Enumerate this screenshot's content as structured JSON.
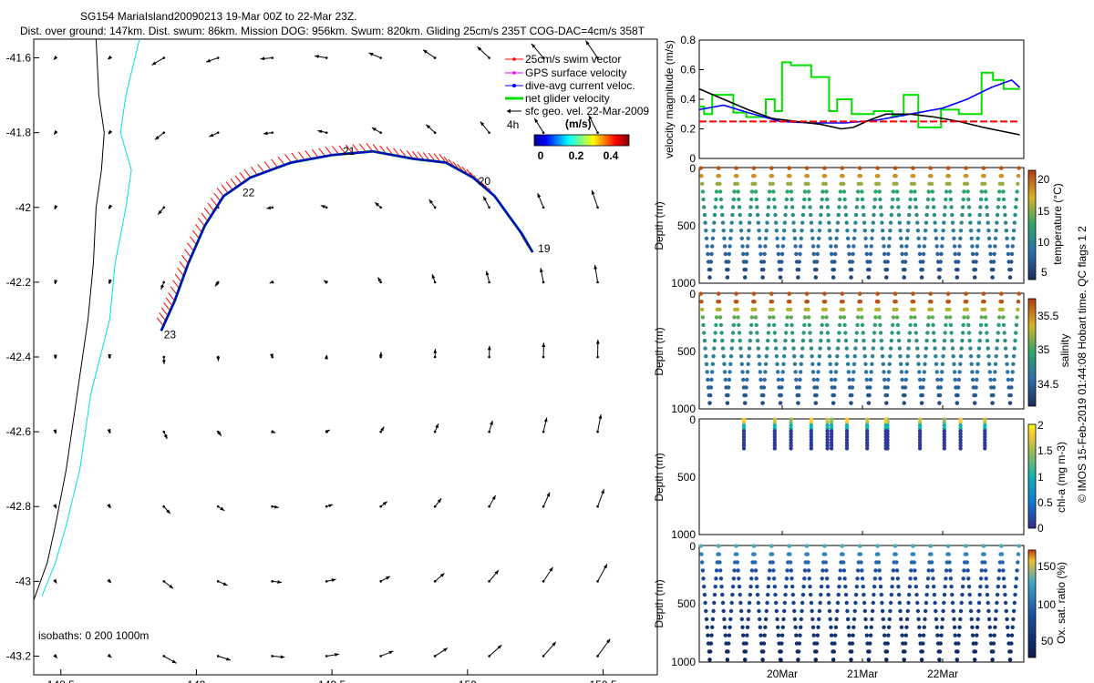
{
  "title_line1": "SG154 MariaIsland20090213 19-Mar 00Z to 22-Mar 23Z.",
  "title_line2": "Dist. over ground: 147km. Dist. swum: 86km. Mission DOG: 956km. Swum: 820km. Gliding 25cm/s 235T COG-DAC=4cm/s 358T",
  "credit": "© IMOS 15-Feb-2019 01:44:08 Hobart time. QC flags 1  2",
  "chart_data": [
    {
      "id": "map",
      "type": "scatter",
      "xlim": [
        148.4,
        150.7
      ],
      "ylim": [
        -43.25,
        -41.55
      ],
      "xticks": [
        148.5,
        149,
        149.5,
        150,
        150.5
      ],
      "xtick_labels": [
        "148.5",
        "149",
        "149.5",
        "150",
        "150.5"
      ],
      "yticks": [
        -41.6,
        -41.8,
        -42,
        -42.2,
        -42.4,
        -42.6,
        -42.8,
        -43,
        -43.2
      ],
      "ytick_labels": [
        "-41.6",
        "-41.8",
        "-42",
        "-42.2",
        "-42.4",
        "-42.6",
        "-42.8",
        "-43",
        "-43.2"
      ],
      "legend_placement": "top-right",
      "legend": [
        {
          "label": "25cm/s swim vector",
          "color": "#ff0000"
        },
        {
          "label": "GPS surface velocity",
          "color": "#ff00ff"
        },
        {
          "label": "dive-avg current veloc.",
          "color": "#0000ff"
        },
        {
          "label": "net glider velocity",
          "color": "#00dd00"
        },
        {
          "label": "sfc geo. vel. 22-Mar-2009",
          "color": "#000000"
        }
      ],
      "scale_label": "4h",
      "colorbar_title": "(m/s)",
      "colorbar_ticks": [
        "0",
        "0.2",
        "0.4"
      ],
      "isobaths_label": "isobaths: 0   200  1000m",
      "isobath_200": [
        [
          148.63,
          -41.55
        ],
        [
          148.64,
          -41.7
        ],
        [
          148.66,
          -41.8
        ],
        [
          148.65,
          -41.9
        ],
        [
          148.63,
          -42.0
        ],
        [
          148.62,
          -42.15
        ],
        [
          148.6,
          -42.3
        ],
        [
          148.56,
          -42.5
        ],
        [
          148.52,
          -42.7
        ],
        [
          148.48,
          -42.85
        ],
        [
          148.45,
          -42.95
        ],
        [
          148.4,
          -43.05
        ]
      ],
      "isobath_1000": [
        [
          148.79,
          -41.55
        ],
        [
          148.74,
          -41.7
        ],
        [
          148.72,
          -41.8
        ],
        [
          148.76,
          -41.9
        ],
        [
          148.74,
          -42.0
        ],
        [
          148.7,
          -42.15
        ],
        [
          148.68,
          -42.3
        ],
        [
          148.61,
          -42.5
        ],
        [
          148.57,
          -42.7
        ],
        [
          148.52,
          -42.85
        ],
        [
          148.48,
          -42.95
        ],
        [
          148.43,
          -43.04
        ]
      ],
      "track": [
        [
          150.24,
          -42.12
        ],
        [
          150.2,
          -42.07
        ],
        [
          150.15,
          -42.02
        ],
        [
          150.1,
          -41.97
        ],
        [
          150.02,
          -41.92
        ],
        [
          149.92,
          -41.88
        ],
        [
          149.8,
          -41.87
        ],
        [
          149.65,
          -41.85
        ],
        [
          149.5,
          -41.86
        ],
        [
          149.35,
          -41.88
        ],
        [
          149.2,
          -41.92
        ],
        [
          149.1,
          -41.97
        ],
        [
          149.03,
          -42.05
        ],
        [
          148.97,
          -42.15
        ],
        [
          148.92,
          -42.25
        ],
        [
          148.87,
          -42.33
        ]
      ],
      "track_labels": [
        {
          "text": "19",
          "x": 150.26,
          "y": -42.11
        },
        {
          "text": "20",
          "x": 150.04,
          "y": -41.93
        },
        {
          "text": "21",
          "x": 149.54,
          "y": -41.85
        },
        {
          "text": "22",
          "x": 149.17,
          "y": -41.96
        },
        {
          "text": "23",
          "x": 148.88,
          "y": -42.34
        }
      ],
      "vector_grid_x": [
        148.48,
        148.68,
        148.88,
        149.08,
        149.28,
        149.48,
        149.68,
        149.88,
        150.08,
        150.28,
        150.48
      ],
      "vector_grid_y": [
        -41.6,
        -41.8,
        -42.0,
        -42.2,
        -42.4,
        -42.6,
        -42.8,
        -43.0,
        -43.2
      ]
    },
    {
      "id": "velocity",
      "type": "line",
      "ylabel": "velocity magnitude (m/s)",
      "ylim": [
        0,
        0.8
      ],
      "yticks": [
        0,
        0.2,
        0.4,
        0.6,
        0.8
      ],
      "ytick_labels": [
        "0",
        "0.2",
        "0.4",
        "0.6",
        "0.8"
      ],
      "xlim": [
        0,
        4
      ],
      "series": [
        {
          "color": "#00e000",
          "x": [
            0,
            0.06,
            0.06,
            0.16,
            0.16,
            0.42,
            0.42,
            0.58,
            0.58,
            0.82,
            0.82,
            0.93,
            0.93,
            1.02,
            1.02,
            1.13,
            1.13,
            1.38,
            1.38,
            1.6,
            1.6,
            1.7,
            1.7,
            1.88,
            1.88,
            2.15,
            2.15,
            2.38,
            2.38,
            2.52,
            2.52,
            2.7,
            2.7,
            2.98,
            2.98,
            3.2,
            3.2,
            3.48,
            3.48,
            3.62,
            3.62,
            3.75,
            3.75,
            3.95
          ],
          "y": [
            0.35,
            0.35,
            0.3,
            0.3,
            0.43,
            0.43,
            0.31,
            0.31,
            0.28,
            0.28,
            0.4,
            0.4,
            0.32,
            0.32,
            0.65,
            0.65,
            0.63,
            0.63,
            0.55,
            0.55,
            0.32,
            0.32,
            0.4,
            0.4,
            0.3,
            0.3,
            0.32,
            0.32,
            0.29,
            0.29,
            0.43,
            0.43,
            0.21,
            0.21,
            0.33,
            0.33,
            0.3,
            0.3,
            0.58,
            0.58,
            0.53,
            0.53,
            0.47,
            0.47
          ]
        },
        {
          "color": "#0000ff",
          "x": [
            0,
            0.3,
            0.6,
            1.0,
            1.4,
            1.8,
            2.2,
            2.6,
            3.0,
            3.3,
            3.6,
            3.85,
            3.95
          ],
          "y": [
            0.33,
            0.36,
            0.31,
            0.25,
            0.24,
            0.24,
            0.26,
            0.3,
            0.34,
            0.4,
            0.48,
            0.53,
            0.48
          ]
        },
        {
          "color": "#000000",
          "x": [
            0,
            0.3,
            0.6,
            0.9,
            1.2,
            1.5,
            1.75,
            1.9,
            2.1,
            2.3,
            2.6,
            2.9,
            3.2,
            3.5,
            3.95
          ],
          "y": [
            0.47,
            0.4,
            0.33,
            0.27,
            0.25,
            0.23,
            0.2,
            0.21,
            0.26,
            0.3,
            0.3,
            0.28,
            0.25,
            0.21,
            0.16
          ]
        },
        {
          "color": "#ff0000",
          "dashed": true,
          "x": [
            0,
            3.95
          ],
          "y": [
            0.25,
            0.25
          ]
        }
      ]
    },
    {
      "id": "temperature",
      "type": "scatter",
      "ylabel": "Depth (m)",
      "ylim": [
        0,
        1000
      ],
      "yticks": [
        "0",
        "500",
        "1000"
      ],
      "colorbar_label": "temperature (°C)",
      "colorbar_ticks": [
        "20",
        "15",
        "10",
        "5"
      ],
      "n_dives": 18,
      "max_depth": 950
    },
    {
      "id": "salinity",
      "type": "scatter",
      "ylabel": "Depth (m)",
      "ylim": [
        0,
        1000
      ],
      "yticks": [
        "0",
        "500",
        "1000"
      ],
      "colorbar_label": "salinity",
      "colorbar_ticks": [
        "35.5",
        "35",
        "34.5"
      ],
      "n_dives": 18,
      "max_depth": 950
    },
    {
      "id": "chla",
      "type": "scatter",
      "ylabel": "Depth (m)",
      "ylim": [
        0,
        1000
      ],
      "yticks": [
        "0",
        "500",
        "1000"
      ],
      "colorbar_label": "chl-a (mg m-3)",
      "colorbar_ticks": [
        "2",
        "1.5",
        "1",
        "0.5",
        "0"
      ],
      "profiles": [
        0.55,
        0.93,
        1.13,
        1.38,
        1.58,
        1.63,
        1.82,
        2.07,
        2.32,
        2.3,
        2.72,
        3.02,
        3.22,
        3.52
      ]
    },
    {
      "id": "oxygen",
      "type": "scatter",
      "ylabel": "Depth (m)",
      "ylim": [
        0,
        1000
      ],
      "yticks": [
        "0",
        "500",
        "1000"
      ],
      "colorbar_label": "Ox. sat. ratio (%)",
      "colorbar_ticks": [
        "150",
        "100",
        "50"
      ],
      "xtick_labels": [
        "20Mar",
        "21Mar",
        "22Mar"
      ],
      "n_dives": 18,
      "max_depth": 980
    }
  ]
}
